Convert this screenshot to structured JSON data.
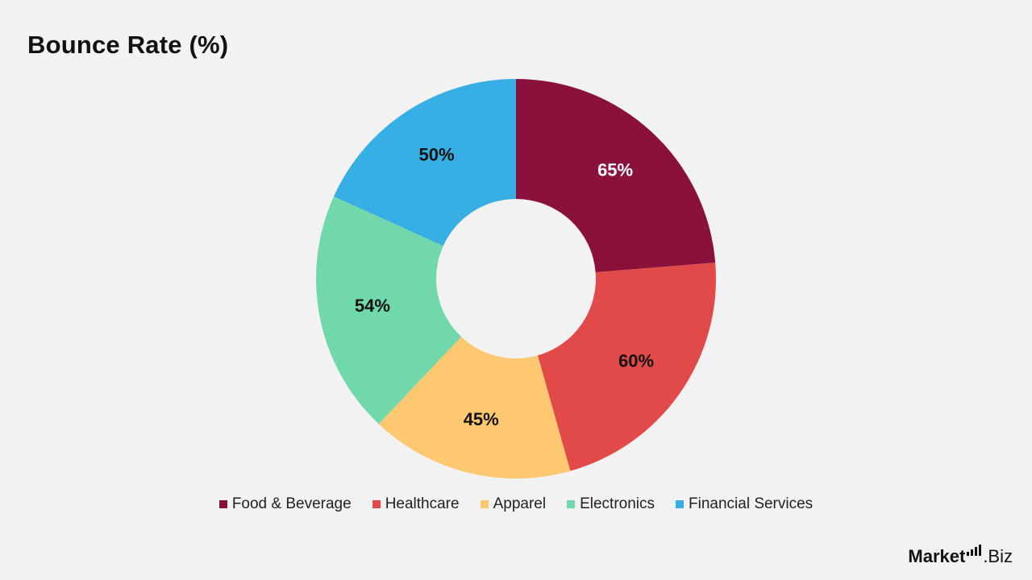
{
  "chart_data": {
    "type": "pie",
    "title": "Bounce Rate (%)",
    "categories": [
      "Food & Beverage",
      "Healthcare",
      "Apparel",
      "Electronics",
      "Financial Services"
    ],
    "values": [
      65,
      60,
      45,
      54,
      50
    ],
    "labels": [
      "65%",
      "60%",
      "45%",
      "54%",
      "50%"
    ],
    "colors": [
      "#8b113d",
      "#e24a4a",
      "#fdc870",
      "#71d8ab",
      "#37aee4"
    ],
    "label_colors": [
      "#ffffff",
      "#111111",
      "#111111",
      "#111111",
      "#111111"
    ],
    "donut": true,
    "legend_position": "bottom"
  },
  "logo": {
    "brand": "Market",
    "suffix": ".Biz"
  }
}
